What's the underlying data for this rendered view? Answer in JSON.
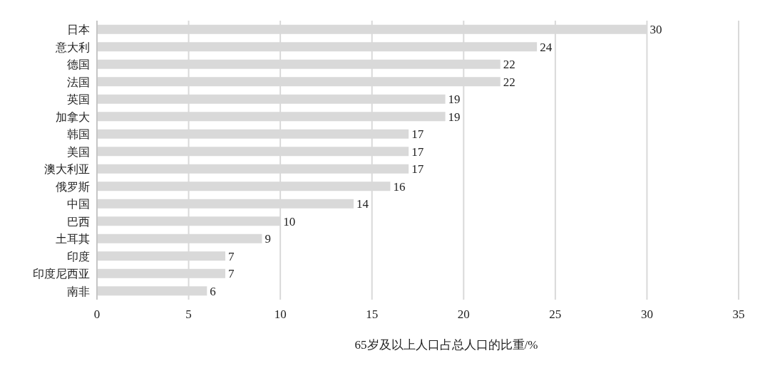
{
  "chart_data": {
    "type": "bar",
    "orientation": "horizontal",
    "categories": [
      "日本",
      "意大利",
      "德国",
      "法国",
      "英国",
      "加拿大",
      "韩国",
      "美国",
      "澳大利亚",
      "俄罗斯",
      "中国",
      "巴西",
      "土耳其",
      "印度",
      "印度尼西亚",
      "南非"
    ],
    "values": [
      30,
      24,
      22,
      22,
      19,
      19,
      17,
      17,
      17,
      16,
      14,
      10,
      9,
      7,
      7,
      6
    ],
    "color": "#d9d9d9",
    "xlabel": "65岁及以上人口占总人口的比重/%",
    "xlim": [
      0,
      35
    ],
    "xticks": [
      0,
      5,
      10,
      15,
      20,
      25,
      30,
      35
    ],
    "grid": "x",
    "data_labels": true
  }
}
